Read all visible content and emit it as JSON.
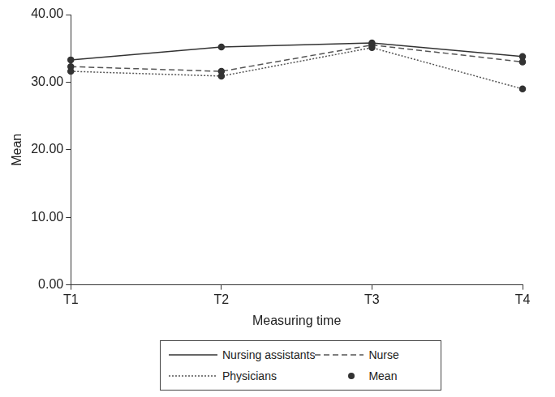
{
  "chart_data": {
    "type": "line",
    "x_label": "Measuring time",
    "y_label": "Mean",
    "categories": [
      "T1",
      "T2",
      "T3",
      "T4"
    ],
    "series": [
      {
        "name": "Nursing assistants",
        "color": "#333333",
        "line_style": "solid",
        "marker": "circle",
        "values": [
          33.3,
          35.2,
          35.8,
          33.8
        ]
      },
      {
        "name": "Nurse",
        "color": "#555555",
        "line_style": "dashed",
        "marker": "circle",
        "values": [
          32.3,
          31.6,
          35.5,
          33.0
        ]
      },
      {
        "name": "Physicians",
        "color": "#555555",
        "line_style": "dotted",
        "marker": "circle",
        "values": [
          31.6,
          30.9,
          35.1,
          29.0
        ]
      },
      {
        "name": "Mean",
        "color": "#333333",
        "line_style": "none",
        "marker": "circle",
        "values": [
          null,
          null,
          null,
          null
        ]
      }
    ],
    "ylim": [
      0,
      40
    ],
    "yticks": [
      {
        "value": 0,
        "label": "0.00"
      },
      {
        "value": 10,
        "label": "10.00"
      },
      {
        "value": 20,
        "label": "20.00"
      },
      {
        "value": 30,
        "label": "30.00"
      },
      {
        "value": 40,
        "label": "40.00"
      }
    ],
    "grid": false,
    "legend": "bottom"
  }
}
